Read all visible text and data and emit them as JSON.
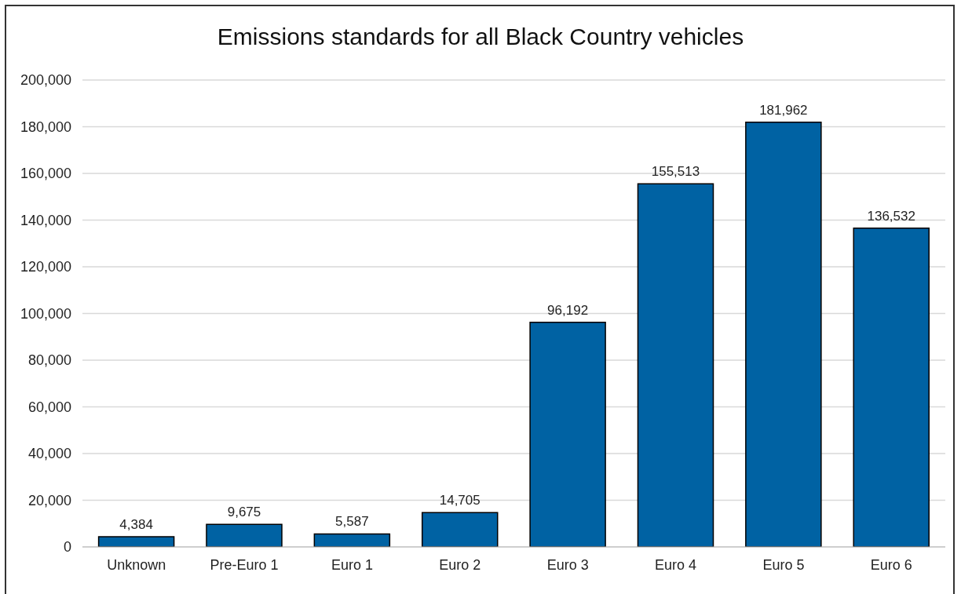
{
  "chart_data": {
    "type": "bar",
    "title": "Emissions standards for all Black Country vehicles",
    "categories": [
      "Unknown",
      "Pre-Euro 1",
      "Euro 1",
      "Euro 2",
      "Euro 3",
      "Euro 4",
      "Euro 5",
      "Euro 6"
    ],
    "values": [
      4384,
      9675,
      5587,
      14705,
      96192,
      155513,
      181962,
      136532
    ],
    "value_labels": [
      "4,384",
      "9,675",
      "5,587",
      "14,705",
      "96,192",
      "155,513",
      "181,962",
      "136,532"
    ],
    "color": "#0062a3",
    "ylim": [
      0,
      200000
    ],
    "yticks": [
      0,
      {
        "value": 20000,
        "label": "20,000"
      },
      {
        "value": 40000,
        "label": "40,000"
      },
      {
        "value": 60000,
        "label": "60,000"
      },
      {
        "value": 80000,
        "label": "80,000"
      },
      {
        "value": 100000,
        "label": "100,000"
      },
      {
        "value": 120000,
        "label": "120,000"
      },
      {
        "value": 140000,
        "label": "140,000"
      },
      {
        "value": 160000,
        "label": "160,000"
      },
      {
        "value": 180000,
        "label": "180,000"
      },
      {
        "value": 200000,
        "label": "200,000"
      }
    ],
    "grid": "y"
  }
}
